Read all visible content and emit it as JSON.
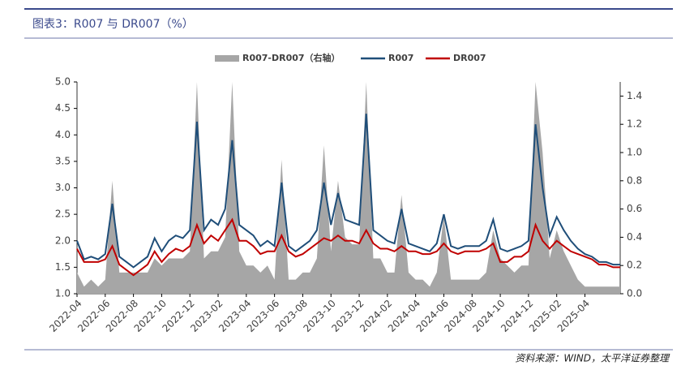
{
  "chart_data": {
    "type": "line",
    "title": "图表3：R007 与 DR007（%）",
    "source": "资料来源：WIND，太平洋证券整理",
    "categories": [
      "2022-04",
      null,
      null,
      null,
      "2022-06",
      null,
      null,
      null,
      "2022-08",
      null,
      null,
      null,
      "2022-10",
      null,
      null,
      null,
      "2022-12",
      null,
      null,
      null,
      "2023-02",
      null,
      null,
      null,
      "2023-04",
      null,
      null,
      null,
      "2023-06",
      null,
      null,
      null,
      "2023-08",
      null,
      null,
      null,
      "2023-10",
      null,
      null,
      null,
      "2023-12",
      null,
      null,
      null,
      "2024-02",
      null,
      null,
      null,
      "2024-04",
      null,
      null,
      null,
      "2024-06",
      null,
      null,
      null,
      "2024-08",
      null,
      null,
      null,
      "2024-10",
      null,
      null,
      null,
      "2024-12",
      null,
      null,
      null,
      "2025-02",
      null,
      null,
      null,
      "2025-04",
      null,
      null,
      null,
      null,
      null
    ],
    "series": [
      {
        "name": "R007-DR007（右轴）",
        "type": "area",
        "axis": "y2",
        "color": "#a6a6a6",
        "values": [
          0.15,
          0.05,
          0.1,
          0.05,
          0.1,
          0.8,
          0.15,
          0.15,
          0.15,
          0.15,
          0.15,
          0.25,
          0.2,
          0.25,
          0.25,
          0.25,
          0.3,
          1.5,
          0.25,
          0.3,
          0.3,
          0.4,
          1.5,
          0.3,
          0.2,
          0.2,
          0.15,
          0.2,
          0.1,
          0.95,
          0.1,
          0.1,
          0.15,
          0.15,
          0.25,
          1.05,
          0.3,
          0.8,
          0.4,
          0.35,
          0.35,
          1.5,
          0.25,
          0.25,
          0.15,
          0.15,
          0.7,
          0.15,
          0.1,
          0.1,
          0.05,
          0.15,
          0.55,
          0.1,
          0.1,
          0.1,
          0.1,
          0.1,
          0.15,
          0.45,
          0.25,
          0.2,
          0.15,
          0.2,
          0.2,
          1.5,
          1.0,
          0.25,
          0.45,
          0.3,
          0.2,
          0.1,
          0.05,
          0.05,
          0.05,
          0.05,
          0.05,
          0.05
        ]
      },
      {
        "name": "R007",
        "type": "line",
        "color": "#1f4e79",
        "values": [
          2.0,
          1.65,
          1.7,
          1.65,
          1.75,
          2.7,
          1.7,
          1.6,
          1.5,
          1.6,
          1.7,
          2.05,
          1.8,
          2.0,
          2.1,
          2.05,
          2.2,
          4.25,
          2.2,
          2.4,
          2.3,
          2.6,
          3.9,
          2.3,
          2.2,
          2.1,
          1.9,
          2.0,
          1.9,
          3.1,
          1.9,
          1.8,
          1.9,
          2.0,
          2.2,
          3.1,
          2.3,
          2.9,
          2.4,
          2.35,
          2.3,
          4.4,
          2.2,
          2.1,
          2.0,
          1.95,
          2.6,
          1.95,
          1.9,
          1.85,
          1.8,
          1.95,
          2.5,
          1.9,
          1.85,
          1.9,
          1.9,
          1.9,
          2.0,
          2.4,
          1.85,
          1.8,
          1.85,
          1.9,
          2.0,
          4.2,
          3.0,
          2.1,
          2.45,
          2.2,
          2.0,
          1.85,
          1.75,
          1.7,
          1.6,
          1.6,
          1.55,
          1.55
        ]
      },
      {
        "name": "DR007",
        "type": "line",
        "color": "#c00000",
        "values": [
          1.85,
          1.6,
          1.6,
          1.6,
          1.65,
          1.9,
          1.55,
          1.45,
          1.35,
          1.45,
          1.55,
          1.8,
          1.6,
          1.75,
          1.85,
          1.8,
          1.9,
          2.3,
          1.95,
          2.1,
          2.0,
          2.2,
          2.4,
          2.0,
          2.0,
          1.9,
          1.75,
          1.8,
          1.8,
          2.1,
          1.8,
          1.7,
          1.75,
          1.85,
          1.95,
          2.05,
          2.0,
          2.1,
          2.0,
          2.0,
          1.95,
          2.2,
          1.95,
          1.85,
          1.85,
          1.8,
          1.9,
          1.8,
          1.8,
          1.75,
          1.75,
          1.8,
          1.95,
          1.8,
          1.75,
          1.8,
          1.8,
          1.8,
          1.85,
          1.95,
          1.6,
          1.6,
          1.7,
          1.7,
          1.8,
          2.3,
          2.0,
          1.85,
          2.0,
          1.9,
          1.8,
          1.75,
          1.7,
          1.65,
          1.55,
          1.55,
          1.5,
          1.5
        ]
      }
    ],
    "ylim": [
      1.0,
      5.0
    ],
    "yticks": [
      {
        "value": 1.0,
        "label": "1.0"
      },
      {
        "value": 1.5,
        "label": "1.5"
      },
      {
        "value": 2.0,
        "label": "2.0"
      },
      {
        "value": 2.5,
        "label": "2.5"
      },
      {
        "value": 3.0,
        "label": "3.0"
      },
      {
        "value": 3.5,
        "label": "3.5"
      },
      {
        "value": 4.0,
        "label": "4.0"
      },
      {
        "value": 4.5,
        "label": "4.5"
      },
      {
        "value": 5.0,
        "label": "5.0"
      }
    ],
    "y2lim": [
      0,
      1.5
    ],
    "y2ticks": [
      {
        "value": 0,
        "label": "0.0"
      },
      {
        "value": 0.2,
        "label": "0.2"
      },
      {
        "value": 0.4,
        "label": "0.4"
      },
      {
        "value": 0.6,
        "label": "0.6"
      },
      {
        "value": 0.8,
        "label": "0.8"
      },
      {
        "value": 1.0,
        "label": "1.0"
      },
      {
        "value": 1.2,
        "label": "1.2"
      },
      {
        "value": 1.4,
        "label": "1.4"
      }
    ],
    "legend": "top",
    "grid": false
  }
}
